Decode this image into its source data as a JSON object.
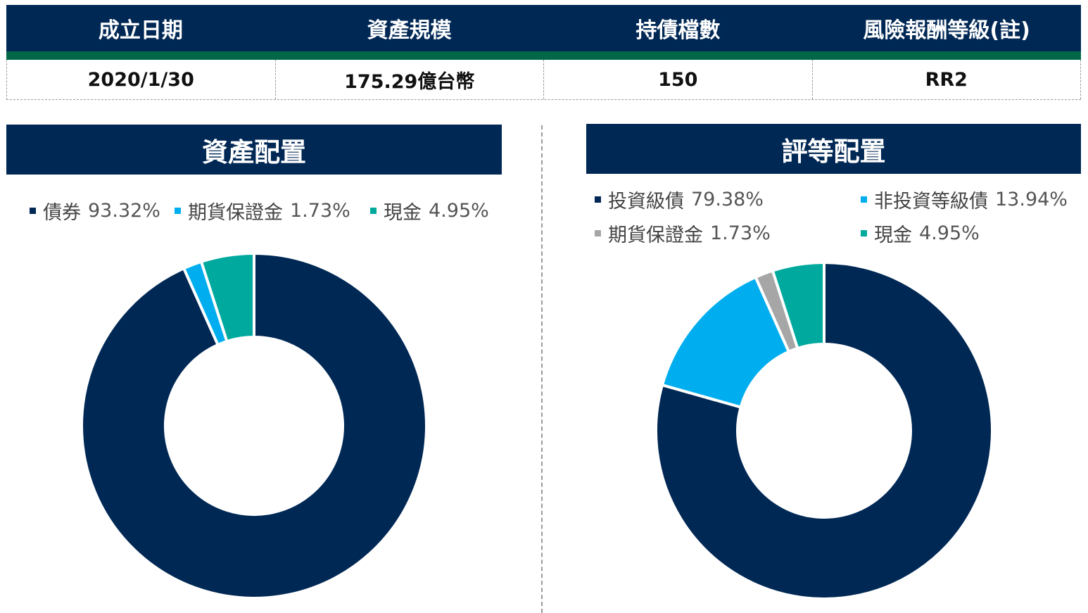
{
  "info": {
    "headers": [
      "成立日期",
      "資產規模",
      "持債檔數",
      "風險報酬等級(註)"
    ],
    "values": [
      "2020/1/30",
      "175.29億台幣",
      "150",
      "RR2"
    ]
  },
  "colors": {
    "navy": "#002855",
    "green_stripe": "#006848",
    "sky": "#00aeef",
    "teal": "#00a99d",
    "gray": "#a6a6a6"
  },
  "chart_data": [
    {
      "type": "pie",
      "title": "資產配置",
      "legend_position": "top",
      "slices": [
        {
          "label": "債券",
          "value": 93.32,
          "display": "93.32%",
          "color": "#002855"
        },
        {
          "label": "期貨保證金",
          "value": 1.73,
          "display": "1.73%",
          "color": "#00aeef"
        },
        {
          "label": "現金",
          "value": 4.95,
          "display": "4.95%",
          "color": "#00a99d"
        }
      ]
    },
    {
      "type": "pie",
      "title": "評等配置",
      "legend_position": "top",
      "slices": [
        {
          "label": "投資級債",
          "value": 79.38,
          "display": "79.38%",
          "color": "#002855"
        },
        {
          "label": "非投資等級債",
          "value": 13.94,
          "display": "13.94%",
          "color": "#00aeef"
        },
        {
          "label": "期貨保證金",
          "value": 1.73,
          "display": "1.73%",
          "color": "#a6a6a6"
        },
        {
          "label": "現金",
          "value": 4.95,
          "display": "4.95%",
          "color": "#00a99d"
        }
      ]
    }
  ]
}
